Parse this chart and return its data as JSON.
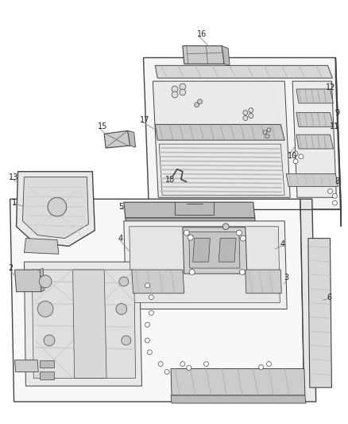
{
  "bg_color": "#ffffff",
  "line_color": "#444444",
  "label_color": "#222222",
  "label_fontsize": 7.0,
  "fig_width": 4.39,
  "fig_height": 5.33,
  "dpi": 100
}
